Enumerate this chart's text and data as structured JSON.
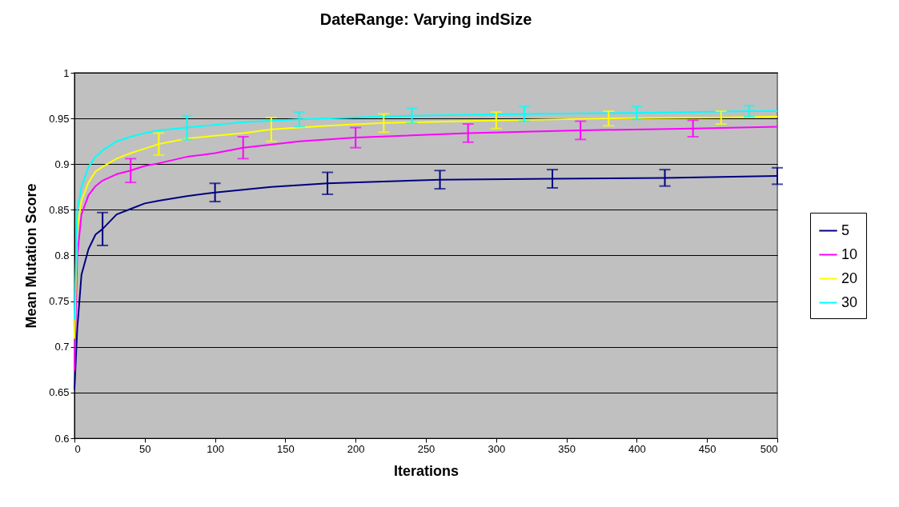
{
  "chart_data": {
    "type": "line",
    "title": "DateRange: Varying indSize",
    "xlabel": "Iterations",
    "ylabel": "Mean Mutation Score",
    "xlim": [
      0,
      500
    ],
    "xticks": [
      0,
      50,
      100,
      150,
      200,
      250,
      300,
      350,
      400,
      450,
      500
    ],
    "ylim": [
      0.6,
      1
    ],
    "yticks": [
      0.6,
      0.65,
      0.7,
      0.75,
      0.8,
      0.85,
      0.9,
      0.95,
      1
    ],
    "grid": "y",
    "legend": "right",
    "marker": "none",
    "line_style": "solid",
    "series": [
      {
        "name": "5",
        "color": "#000080",
        "x": [
          0,
          2,
          5,
          10,
          15,
          20,
          30,
          40,
          50,
          60,
          80,
          100,
          140,
          180,
          260,
          340,
          420,
          500
        ],
        "values": [
          0.653,
          0.72,
          0.779,
          0.807,
          0.823,
          0.829,
          0.845,
          0.851,
          0.857,
          0.86,
          0.865,
          0.869,
          0.875,
          0.879,
          0.883,
          0.884,
          0.885,
          0.887
        ],
        "errors": [
          null,
          null,
          null,
          null,
          null,
          0.018,
          null,
          null,
          null,
          null,
          null,
          0.01,
          null,
          0.012,
          0.01,
          0.01,
          0.009,
          0.009
        ]
      },
      {
        "name": "10",
        "color": "#ff00ff",
        "x": [
          0,
          1,
          2,
          5,
          10,
          15,
          20,
          30,
          40,
          50,
          60,
          80,
          100,
          120,
          160,
          200,
          280,
          360,
          440,
          500
        ],
        "values": [
          0.674,
          0.74,
          0.8,
          0.845,
          0.866,
          0.876,
          0.882,
          0.889,
          0.893,
          0.898,
          0.901,
          0.908,
          0.912,
          0.918,
          0.925,
          0.929,
          0.934,
          0.937,
          0.939,
          0.941
        ],
        "errors": [
          null,
          null,
          null,
          null,
          null,
          null,
          null,
          null,
          0.013,
          null,
          null,
          null,
          null,
          0.012,
          null,
          0.011,
          0.01,
          0.01,
          0.009,
          null
        ]
      },
      {
        "name": "20",
        "color": "#ffff00",
        "x": [
          0,
          2,
          5,
          10,
          15,
          20,
          30,
          40,
          50,
          60,
          80,
          100,
          120,
          140,
          180,
          220,
          300,
          380,
          460,
          500
        ],
        "values": [
          0.709,
          0.83,
          0.86,
          0.88,
          0.892,
          0.897,
          0.906,
          0.912,
          0.917,
          0.922,
          0.928,
          0.931,
          0.934,
          0.938,
          0.942,
          0.945,
          0.948,
          0.95,
          0.951,
          0.952
        ],
        "errors": [
          null,
          null,
          null,
          null,
          null,
          null,
          null,
          null,
          null,
          0.012,
          null,
          null,
          null,
          0.013,
          null,
          0.01,
          0.009,
          0.008,
          0.007,
          null
        ]
      },
      {
        "name": "30",
        "color": "#00ffff",
        "x": [
          0,
          2,
          5,
          10,
          15,
          20,
          30,
          40,
          50,
          60,
          80,
          100,
          120,
          160,
          240,
          320,
          400,
          480,
          500
        ],
        "values": [
          0.73,
          0.85,
          0.875,
          0.897,
          0.908,
          0.915,
          0.925,
          0.93,
          0.934,
          0.937,
          0.94,
          0.943,
          0.946,
          0.949,
          0.953,
          0.955,
          0.956,
          0.958,
          0.958
        ],
        "errors": [
          null,
          null,
          null,
          null,
          null,
          null,
          null,
          null,
          null,
          null,
          0.013,
          null,
          null,
          0.008,
          0.008,
          0.008,
          0.007,
          0.006,
          null
        ]
      }
    ]
  }
}
